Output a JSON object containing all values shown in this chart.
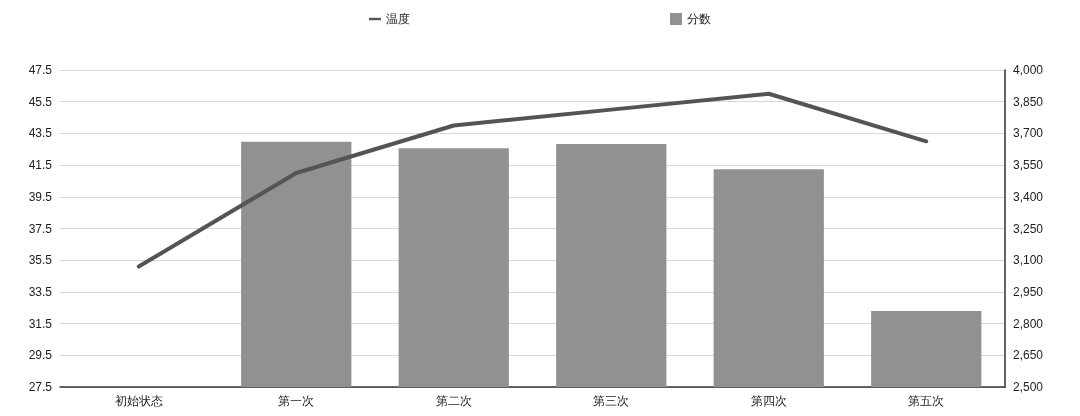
{
  "chart_data": {
    "type": "bar",
    "categories": [
      "初始状态",
      "第一次",
      "第二次",
      "第三次",
      "第四次",
      "第五次"
    ],
    "series": [
      {
        "name": "温度",
        "type": "line",
        "color": "#545450",
        "values": [
          35.1,
          41.0,
          44.0,
          45.0,
          46.0,
          43.0
        ]
      },
      {
        "name": "分数",
        "axis": "y2",
        "color": "#919191",
        "values": [
          null,
          3660,
          3630,
          3650,
          3530,
          2860
        ]
      }
    ],
    "ylim": [
      27.5,
      47.5
    ],
    "yticks": [
      27.5,
      29.5,
      31.5,
      33.5,
      35.5,
      37.5,
      39.5,
      41.5,
      43.5,
      45.5,
      47.5
    ],
    "y2lim": [
      2500,
      4000
    ],
    "y2ticks": [
      {
        "value": 2500,
        "label": "2,500"
      },
      {
        "value": 2650,
        "label": "2,650"
      },
      {
        "value": 2800,
        "label": "2,800"
      },
      {
        "value": 2950,
        "label": "2,950"
      },
      {
        "value": 3100,
        "label": "3,100"
      },
      {
        "value": 3250,
        "label": "3,250"
      },
      {
        "value": 3400,
        "label": "3,400"
      },
      {
        "value": 3550,
        "label": "3,550"
      },
      {
        "value": 3700,
        "label": "3,700"
      },
      {
        "value": 3850,
        "label": "3,850"
      },
      {
        "value": 4000,
        "label": "4,000"
      }
    ],
    "grid": "y",
    "legend": "top",
    "marker": "none",
    "line_style": "solid"
  }
}
